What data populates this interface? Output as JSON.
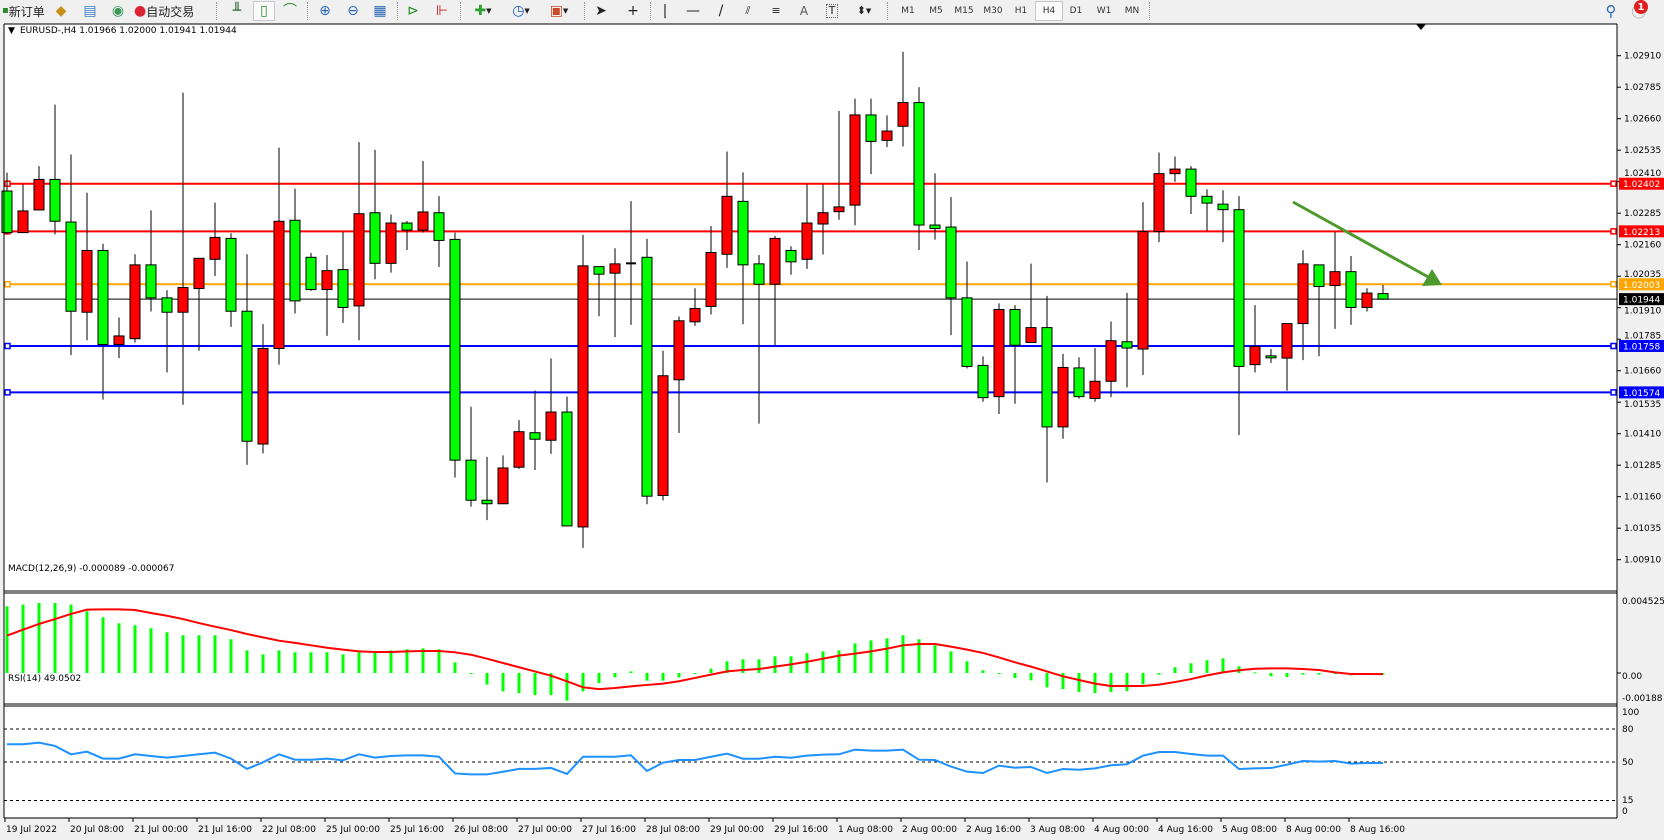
{
  "toolbar": {
    "new_order": "新订单",
    "auto_trading": "自动交易",
    "timeframes": [
      "M1",
      "M5",
      "M15",
      "M30",
      "H1",
      "H4",
      "D1",
      "W1",
      "MN"
    ],
    "active_timeframe": "H4",
    "notification_count": "1",
    "icons": [
      "new-order-icon",
      "market-watch-icon",
      "data-window-icon",
      "navigator-icon",
      "auto-trading-icon",
      "bar-chart-icon",
      "candlestick-icon",
      "line-chart-icon",
      "zoom-in-icon",
      "zoom-out-icon",
      "tile-windows-icon",
      "auto-scroll-icon",
      "chart-shift-icon",
      "indicators-icon",
      "periods-icon",
      "templates-icon",
      "cursor-icon",
      "crosshair-icon",
      "vertical-line-icon",
      "horizontal-line-icon",
      "trendline-icon",
      "equidistant-channel-icon",
      "fibonacci-icon",
      "text-icon",
      "text-label-icon",
      "arrows-icon",
      "search-icon",
      "notification-icon"
    ]
  },
  "chart_data": {
    "type": "candlestick",
    "symbol_header": "EURUSD-,H4  1.01966 1.02000 1.01941 1.01944",
    "colors": {
      "bull": "#FF0000",
      "bear": "#00FF00",
      "outline": "#000000",
      "arrow": "#4E9A2E"
    },
    "y_ticks": [
      "1.02910",
      "1.02785",
      "1.02660",
      "1.02535",
      "1.02410",
      "1.02285",
      "1.02160",
      "1.02035",
      "1.01910",
      "1.01785",
      "1.01660",
      "1.01535",
      "1.01410",
      "1.01285",
      "1.01160",
      "1.01035",
      "1.00910"
    ],
    "ylim": [
      1.00775,
      1.0293
    ],
    "bid": {
      "price": 1.01944,
      "label": "1.01944",
      "color": "#000000"
    },
    "levels": [
      {
        "price": 1.02402,
        "label": "1.02402",
        "color": "#FF0000"
      },
      {
        "price": 1.02213,
        "label": "1.02213",
        "color": "#FF0000"
      },
      {
        "price": 1.02003,
        "label": "1.02003",
        "color": "#FFA500"
      },
      {
        "price": 1.01758,
        "label": "1.01758",
        "color": "#0000FF"
      },
      {
        "price": 1.01574,
        "label": "1.01574",
        "color": "#0000FF"
      }
    ],
    "x_labels": [
      "19 Jul 2022",
      "20 Jul 08:00",
      "21 Jul 00:00",
      "21 Jul 16:00",
      "22 Jul 08:00",
      "25 Jul 00:00",
      "25 Jul 16:00",
      "26 Jul 08:00",
      "27 Jul 00:00",
      "27 Jul 16:00",
      "28 Jul 08:00",
      "29 Jul 00:00",
      "29 Jul 16:00",
      "1 Aug 08:00",
      "2 Aug 00:00",
      "2 Aug 16:00",
      "3 Aug 08:00",
      "4 Aug 00:00",
      "4 Aug 16:00",
      "5 Aug 08:00",
      "8 Aug 00:00",
      "8 Aug 16:00"
    ],
    "ohlc": [
      [
        1.02373,
        1.02446,
        1.02201,
        1.02208
      ],
      [
        1.02208,
        1.02399,
        1.02208,
        1.02294
      ],
      [
        1.02298,
        1.02472,
        1.02298,
        1.02419
      ],
      [
        1.02419,
        1.02716,
        1.02201,
        1.02253
      ],
      [
        1.0225,
        1.02518,
        1.01722,
        1.01896
      ],
      [
        1.01892,
        1.02366,
        1.01781,
        1.02137
      ],
      [
        1.02137,
        1.02164,
        1.01545,
        1.01764
      ],
      [
        1.01764,
        1.01871,
        1.0171,
        1.01798
      ],
      [
        1.01787,
        1.02122,
        1.01772,
        1.0208
      ],
      [
        1.0208,
        1.02296,
        1.01895,
        1.01949
      ],
      [
        1.01949,
        1.01979,
        1.01653,
        1.01892
      ],
      [
        1.01892,
        1.02763,
        1.01525,
        1.0199
      ],
      [
        1.01986,
        1.02106,
        1.01739,
        1.02106
      ],
      [
        1.02102,
        1.02327,
        1.02036,
        1.02189
      ],
      [
        1.02185,
        1.02205,
        1.01834,
        1.01896
      ],
      [
        1.01896,
        1.02122,
        1.01287,
        1.0138
      ],
      [
        1.01369,
        1.01845,
        1.01332,
        1.01748
      ],
      [
        1.01748,
        1.02545,
        1.01684,
        1.02253
      ],
      [
        1.02257,
        1.02382,
        1.01887,
        1.01937
      ],
      [
        1.0211,
        1.02127,
        1.01977,
        1.01982
      ],
      [
        1.01982,
        1.02119,
        1.01798,
        1.02057
      ],
      [
        1.02061,
        1.0221,
        1.0185,
        1.01911
      ],
      [
        1.01917,
        1.02567,
        1.01781,
        1.02283
      ],
      [
        1.02287,
        1.02537,
        1.02023,
        1.02086
      ],
      [
        1.02086,
        1.0228,
        1.02049,
        1.02246
      ],
      [
        1.02246,
        1.02254,
        1.02139,
        1.02218
      ],
      [
        1.02218,
        1.02492,
        1.02208,
        1.0229
      ],
      [
        1.02287,
        1.02353,
        1.02072,
        1.02177
      ],
      [
        1.02181,
        1.02208,
        1.01236,
        1.01305
      ],
      [
        1.01305,
        1.01517,
        1.0112,
        1.01146
      ],
      [
        1.01146,
        1.01318,
        1.01067,
        1.01132
      ],
      [
        1.01132,
        1.01324,
        1.01132,
        1.01274
      ],
      [
        1.01277,
        1.01464,
        1.0127,
        1.01418
      ],
      [
        1.01414,
        1.01581,
        1.01266,
        1.01388
      ],
      [
        1.01384,
        1.01709,
        1.0133,
        1.01496
      ],
      [
        1.01496,
        1.01557,
        1.01044,
        1.01044
      ],
      [
        1.0104,
        1.02199,
        1.00957,
        1.02076
      ],
      [
        1.02073,
        1.02073,
        1.01876,
        1.02043
      ],
      [
        1.02047,
        1.02146,
        1.01793,
        1.02084
      ],
      [
        1.02086,
        1.02333,
        1.01842,
        1.02086
      ],
      [
        1.0211,
        1.02183,
        1.0113,
        1.01162
      ],
      [
        1.01165,
        1.01739,
        1.01145,
        1.0164
      ],
      [
        1.01624,
        1.01875,
        1.01413,
        1.01858
      ],
      [
        1.01854,
        1.01987,
        1.01838,
        1.01907
      ],
      [
        1.01915,
        1.02234,
        1.01883,
        1.02129
      ],
      [
        1.02122,
        1.0253,
        1.02068,
        1.02352
      ],
      [
        1.02332,
        1.02447,
        1.01845,
        1.0208
      ],
      [
        1.02084,
        1.02119,
        1.0145,
        1.02003
      ],
      [
        1.02003,
        1.02195,
        1.01761,
        1.02185
      ],
      [
        1.02137,
        1.02154,
        1.02041,
        1.02092
      ],
      [
        1.02102,
        1.02399,
        1.02064,
        1.02246
      ],
      [
        1.02242,
        1.02399,
        1.02121,
        1.02287
      ],
      [
        1.02291,
        1.02691,
        1.02259,
        1.0231
      ],
      [
        1.02317,
        1.02739,
        1.02237,
        1.02675
      ],
      [
        1.02675,
        1.02739,
        1.0244,
        1.0257
      ],
      [
        1.02574,
        1.02673,
        1.02547,
        1.02611
      ],
      [
        1.0263,
        1.02925,
        1.0255,
        1.02724
      ],
      [
        1.02724,
        1.02785,
        1.02139,
        1.02238
      ],
      [
        1.02238,
        1.02443,
        1.0218,
        1.02224
      ],
      [
        1.0223,
        1.02349,
        1.01801,
        1.01949
      ],
      [
        1.01949,
        1.02093,
        1.01669,
        1.01677
      ],
      [
        1.01681,
        1.01717,
        1.01537,
        1.01553
      ],
      [
        1.01557,
        1.01927,
        1.01488,
        1.01903
      ],
      [
        1.01903,
        1.0192,
        1.01529,
        1.01761
      ],
      [
        1.01772,
        1.02085,
        1.01772,
        1.01831
      ],
      [
        1.01831,
        1.01957,
        1.01217,
        1.01437
      ],
      [
        1.01437,
        1.01727,
        1.0139,
        1.01673
      ],
      [
        1.01671,
        1.01713,
        1.01549,
        1.01557
      ],
      [
        1.0155,
        1.0175,
        1.01537,
        1.01618
      ],
      [
        1.01618,
        1.01855,
        1.01555,
        1.01779
      ],
      [
        1.01775,
        1.01969,
        1.01594,
        1.0175
      ],
      [
        1.01746,
        1.02329,
        1.01643,
        1.02212
      ],
      [
        1.02212,
        1.02526,
        1.0217,
        1.02442
      ],
      [
        1.02442,
        1.0251,
        1.0241,
        1.0246
      ],
      [
        1.0246,
        1.02472,
        1.02282,
        1.02352
      ],
      [
        1.02352,
        1.0238,
        1.02214,
        1.02325
      ],
      [
        1.02321,
        1.02376,
        1.0217,
        1.02299
      ],
      [
        1.02299,
        1.02353,
        1.01405,
        1.01677
      ],
      [
        1.01684,
        1.0192,
        1.01653,
        1.01756
      ],
      [
        1.01719,
        1.01746,
        1.01691,
        1.01711
      ],
      [
        1.0171,
        1.01847,
        1.01581,
        1.01847
      ],
      [
        1.01847,
        1.02138,
        1.01702,
        1.02084
      ],
      [
        1.0208,
        1.0208,
        1.01718,
        1.01994
      ],
      [
        1.01998,
        1.0221,
        1.01826,
        1.02053
      ],
      [
        1.02053,
        1.02115,
        1.01842,
        1.01911
      ],
      [
        1.01911,
        1.01987,
        1.01895,
        1.01968
      ],
      [
        1.01966,
        1.02,
        1.01941,
        1.01944
      ]
    ],
    "macd": {
      "header": "MACD(12,26,9) -0.000089 -0.000067",
      "y_ticks": [
        "0.004525",
        "0.00",
        "-0.00188"
      ],
      "ylim": [
        -0.00188,
        0.004525
      ],
      "histogram_color": "#00FF00",
      "signal_color": "#FF0000",
      "histogram": [
        0.00419,
        0.00429,
        0.0044,
        0.0044,
        0.00429,
        0.00388,
        0.0035,
        0.00312,
        0.003,
        0.00281,
        0.00256,
        0.00237,
        0.00237,
        0.00237,
        0.00212,
        0.00142,
        0.00117,
        0.00142,
        0.0013,
        0.0013,
        0.0013,
        0.00117,
        0.0013,
        0.0013,
        0.00142,
        0.00149,
        0.00155,
        0.00149,
        0.00067,
        -6e-05,
        -0.00073,
        -0.00115,
        -0.00126,
        -0.00138,
        -0.00138,
        -0.00174,
        -0.00115,
        -0.00063,
        -0.00027,
        0.0001,
        -0.00048,
        -0.00048,
        -0.00027,
        -6e-05,
        0.00027,
        0.00073,
        0.00086,
        0.00086,
        0.00105,
        0.00105,
        0.00124,
        0.00136,
        0.00142,
        0.00186,
        0.00205,
        0.00218,
        0.00237,
        0.00212,
        0.00174,
        0.00136,
        0.00073,
        0.00017,
        -4e-05,
        -0.00031,
        -0.00046,
        -0.0009,
        -0.00101,
        -0.00119,
        -0.00126,
        -0.00119,
        -0.00113,
        -0.00071,
        -0.0001,
        0.00036,
        0.00061,
        0.0008,
        0.00092,
        0.00042,
        4e-05,
        -0.00021,
        -0.00025,
        -0.0001,
        -0.0001,
        -6e-05,
        -0.00015,
        -0.0001,
        -8.9e-05
      ],
      "signal": [
        0.00235,
        0.00272,
        0.00308,
        0.00339,
        0.00371,
        0.00398,
        0.004,
        0.004,
        0.00396,
        0.00377,
        0.0036,
        0.00339,
        0.00314,
        0.00291,
        0.0027,
        0.00245,
        0.00224,
        0.00203,
        0.00189,
        0.00174,
        0.00159,
        0.00147,
        0.00136,
        0.00132,
        0.00132,
        0.00136,
        0.00138,
        0.00138,
        0.0013,
        0.00115,
        0.0009,
        0.00063,
        0.00036,
        0.0001,
        -0.00017,
        -0.00052,
        -0.0009,
        -0.00101,
        -0.00094,
        -0.00084,
        -0.00075,
        -0.00067,
        -0.00052,
        -0.00031,
        -0.0001,
        0.0001,
        0.00019,
        0.00025,
        0.0004,
        0.00054,
        0.00071,
        0.0009,
        0.00109,
        0.00122,
        0.00136,
        0.00153,
        0.00174,
        0.00182,
        0.00182,
        0.00166,
        0.00147,
        0.00126,
        0.00098,
        0.00067,
        0.0004,
        0.0001,
        -0.00021,
        -0.00044,
        -0.00067,
        -0.00082,
        -0.00082,
        -0.00082,
        -0.00073,
        -0.00057,
        -0.00038,
        -0.00015,
        4e-05,
        0.00017,
        0.00027,
        0.00029,
        0.00029,
        0.00025,
        0.00019,
        4e-05,
        -6e-05,
        -6e-05,
        -6.7e-05
      ]
    },
    "rsi": {
      "header": "RSI(14) 49.0502",
      "y_ticks": [
        "100",
        "80",
        "50",
        "15",
        "0"
      ],
      "levels": [
        80,
        50,
        15
      ],
      "ylim": [
        0,
        100
      ],
      "color": "#1E90FF",
      "values": [
        66.1,
        66.1,
        67.6,
        64.6,
        57.0,
        59.4,
        53.1,
        53.1,
        57.0,
        55.5,
        54.0,
        55.5,
        57.0,
        58.5,
        53.1,
        43.7,
        49.7,
        57.0,
        52.1,
        52.1,
        53.1,
        51.5,
        57.0,
        54.0,
        55.5,
        56.0,
        56.0,
        54.8,
        39.6,
        38.7,
        38.7,
        41.1,
        43.7,
        43.7,
        44.6,
        39.1,
        54.8,
        54.8,
        54.8,
        56.1,
        41.8,
        49.4,
        51.8,
        51.8,
        54.8,
        57.6,
        53.0,
        53.0,
        54.8,
        53.9,
        55.8,
        56.7,
        57.0,
        61.2,
        60.3,
        60.3,
        61.2,
        52.1,
        51.8,
        45.8,
        41.2,
        40.0,
        46.7,
        44.8,
        45.5,
        40.0,
        43.6,
        43.0,
        44.2,
        47.0,
        47.9,
        55.8,
        59.1,
        59.1,
        57.3,
        55.8,
        55.8,
        43.6,
        44.2,
        44.5,
        47.6,
        50.9,
        50.3,
        50.9,
        48.5,
        49.1,
        49.0502
      ]
    }
  }
}
